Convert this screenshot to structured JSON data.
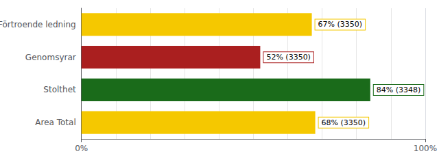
{
  "chart_data": {
    "type": "bar",
    "orientation": "horizontal",
    "categories": [
      "Förtroende ledning",
      "Genomsyrar",
      "Stolthet",
      "Area Total"
    ],
    "values": [
      67,
      52,
      84,
      68
    ],
    "value_labels": [
      "67% (3350)",
      "52% (3350)",
      "84% (3348)",
      "68% (3350)"
    ],
    "colors": [
      "#F5C800",
      "#AA1F1F",
      "#1A6B1A",
      "#F5C800"
    ],
    "xlim": [
      0,
      100
    ],
    "xticks": [
      {
        "value": 0,
        "label": "0%"
      },
      {
        "value": 100,
        "label": "100%"
      }
    ],
    "grid": true,
    "data_labels": true
  }
}
